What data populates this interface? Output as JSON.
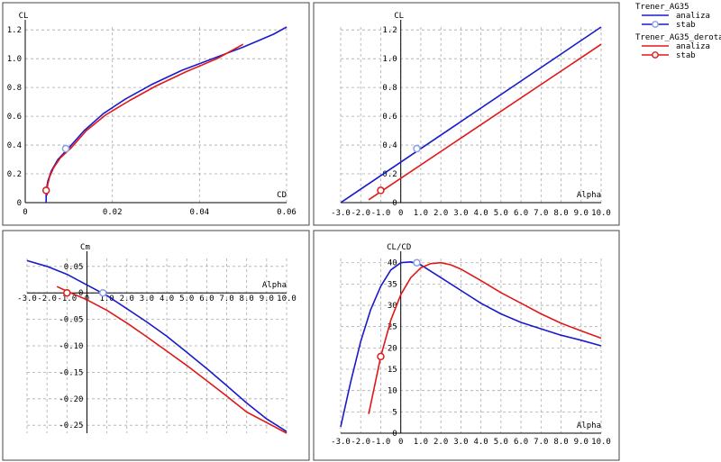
{
  "legend": {
    "groups": [
      {
        "name": "Trener_AG35",
        "color": "#1a1acc",
        "entries": [
          "analiza",
          "stab"
        ]
      },
      {
        "name": "Trener_AG35_derotate",
        "color": "#e01818",
        "entries": [
          "analiza",
          "stab"
        ]
      }
    ]
  },
  "colors": {
    "blue": "#1a1acc",
    "red": "#e01818",
    "stab_blue_marker": "#8aa0e6",
    "grid": "#aaaaaa",
    "panel_border": "#444444"
  },
  "chart_data": [
    {
      "id": "cl-cd",
      "type": "line",
      "title": "",
      "xlabel": "CD",
      "ylabel": "CL",
      "xlim": [
        0,
        0.06
      ],
      "ylim": [
        0,
        1.22
      ],
      "xticks": [
        0,
        0.02,
        0.04,
        0.06
      ],
      "xtick_labels": [
        "0",
        "0.02",
        "0.04",
        "0.06"
      ],
      "yticks": [
        0,
        0.2,
        0.4,
        0.6,
        0.8,
        1.0,
        1.2
      ],
      "ytick_labels": [
        "0",
        "0.2",
        "0.4",
        "0.6",
        "0.8",
        "1.0",
        "1.2"
      ],
      "grid": true,
      "series": [
        {
          "name": "Trener_AG35 analiza",
          "color": "#1a1acc",
          "x": [
            0.0048,
            0.0048,
            0.0049,
            0.0052,
            0.006,
            0.0075,
            0.01,
            0.0135,
            0.018,
            0.023,
            0.029,
            0.036,
            0.043,
            0.05,
            0.057,
            0.06
          ],
          "y": [
            0.0,
            0.05,
            0.1,
            0.15,
            0.22,
            0.3,
            0.38,
            0.5,
            0.62,
            0.72,
            0.82,
            0.92,
            1.0,
            1.08,
            1.17,
            1.22
          ]
        },
        {
          "name": "Trener_AG35_derotate analiza",
          "color": "#e01818",
          "x": [
            0.005,
            0.005,
            0.0052,
            0.0056,
            0.0065,
            0.008,
            0.0105,
            0.014,
            0.0185,
            0.024,
            0.03,
            0.037,
            0.044,
            0.05
          ],
          "y": [
            0.05,
            0.09,
            0.13,
            0.18,
            0.24,
            0.31,
            0.38,
            0.5,
            0.61,
            0.71,
            0.81,
            0.91,
            1.0,
            1.1
          ]
        }
      ],
      "markers": [
        {
          "series": "Trener_AG35 stab",
          "color": "#8aa0e6",
          "x": 0.0093,
          "y": 0.375
        },
        {
          "series": "Trener_AG35_derotate stab",
          "color": "#e01818",
          "x": 0.0048,
          "y": 0.085
        }
      ]
    },
    {
      "id": "cl-alpha",
      "type": "line",
      "title": "",
      "xlabel": "Alpha",
      "ylabel": "CL",
      "xlim": [
        -3.0,
        10.0
      ],
      "ylim": [
        0,
        1.22
      ],
      "xticks": [
        -3,
        -2,
        -1,
        0,
        1,
        2,
        3,
        4,
        5,
        6,
        7,
        8,
        9,
        10
      ],
      "xtick_labels": [
        "-3.0",
        "-2.0",
        "-1.0",
        "0",
        "1.0",
        "2.0",
        "3.0",
        "4.0",
        "5.0",
        "6.0",
        "7.0",
        "8.0",
        "9.0",
        "10.0"
      ],
      "yticks": [
        0,
        0.2,
        0.4,
        0.6,
        0.8,
        1.0,
        1.2
      ],
      "ytick_labels": [
        "0",
        "0.2",
        "0.4",
        "0.6",
        "0.8",
        "1.0",
        "1.2"
      ],
      "grid": true,
      "series": [
        {
          "name": "Trener_AG35 analiza",
          "color": "#1a1acc",
          "x": [
            -3.0,
            10.0
          ],
          "y": [
            0.0,
            1.22
          ]
        },
        {
          "name": "Trener_AG35_derotate analiza",
          "color": "#e01818",
          "x": [
            -1.6,
            10.0
          ],
          "y": [
            0.02,
            1.1
          ]
        }
      ],
      "markers": [
        {
          "series": "Trener_AG35 stab",
          "color": "#8aa0e6",
          "x": 0.8,
          "y": 0.375
        },
        {
          "series": "Trener_AG35_derotate stab",
          "color": "#e01818",
          "x": -1.0,
          "y": 0.085
        }
      ]
    },
    {
      "id": "cm-alpha",
      "type": "line",
      "title": "",
      "xlabel": "Alpha",
      "ylabel": "Cm",
      "xlim": [
        -3.0,
        10.0
      ],
      "ylim": [
        -0.265,
        0.065
      ],
      "xticks": [
        -3,
        -2,
        -1,
        0,
        1,
        2,
        3,
        4,
        5,
        6,
        7,
        8,
        9,
        10
      ],
      "xtick_labels": [
        "-3.0",
        "-2.0",
        "-1.0",
        "0",
        "1.0",
        "2.0",
        "3.0",
        "4.0",
        "5.0",
        "6.0",
        "7.0",
        "8.0",
        "9.0",
        "10.0"
      ],
      "yticks": [
        0.05,
        0.0,
        -0.05,
        -0.1,
        -0.15,
        -0.2,
        -0.25
      ],
      "ytick_labels": [
        "0.05",
        "0",
        "-0.05",
        "-0.10",
        "-0.15",
        "-0.20",
        "-0.25"
      ],
      "grid": true,
      "series": [
        {
          "name": "Trener_AG35 analiza",
          "color": "#1a1acc",
          "x": [
            -3.0,
            -2.0,
            -1.0,
            0.0,
            1.0,
            2.0,
            3.0,
            4.0,
            5.0,
            6.0,
            7.0,
            8.0,
            9.0,
            10.0
          ],
          "y": [
            0.061,
            0.05,
            0.035,
            0.015,
            -0.005,
            -0.03,
            -0.055,
            -0.082,
            -0.112,
            -0.143,
            -0.175,
            -0.208,
            -0.238,
            -0.262
          ]
        },
        {
          "name": "Trener_AG35_derotate analiza",
          "color": "#e01818",
          "x": [
            -1.5,
            -1.0,
            0.0,
            1.0,
            2.0,
            3.0,
            4.0,
            5.0,
            6.0,
            7.0,
            8.0,
            9.0,
            10.0
          ],
          "y": [
            0.012,
            0.003,
            -0.013,
            -0.033,
            -0.057,
            -0.083,
            -0.11,
            -0.137,
            -0.166,
            -0.195,
            -0.225,
            -0.245,
            -0.265
          ]
        }
      ],
      "markers": [
        {
          "series": "Trener_AG35 stab",
          "color": "#8aa0e6",
          "x": 0.8,
          "y": 0.0
        },
        {
          "series": "Trener_AG35_derotate stab",
          "color": "#e01818",
          "x": -1.0,
          "y": 0.0
        }
      ]
    },
    {
      "id": "clcd-alpha",
      "type": "line",
      "title": "",
      "xlabel": "Alpha",
      "ylabel": "CL/CD",
      "xlim": [
        -3.0,
        10.0
      ],
      "ylim": [
        0,
        41
      ],
      "xticks": [
        -3,
        -2,
        -1,
        0,
        1,
        2,
        3,
        4,
        5,
        6,
        7,
        8,
        9,
        10
      ],
      "xtick_labels": [
        "-3.0",
        "-2.0",
        "-1.0",
        "0",
        "1.0",
        "2.0",
        "3.0",
        "4.0",
        "5.0",
        "6.0",
        "7.0",
        "8.0",
        "9.0",
        "10.0"
      ],
      "yticks": [
        0,
        5,
        10,
        15,
        20,
        25,
        30,
        35,
        40
      ],
      "ytick_labels": [
        "0",
        "5",
        "10",
        "15",
        "20",
        "25",
        "30",
        "35",
        "40"
      ],
      "grid": true,
      "series": [
        {
          "name": "Trener_AG35 analiza",
          "color": "#1a1acc",
          "x": [
            -3.0,
            -2.5,
            -2.0,
            -1.5,
            -1.0,
            -0.5,
            0.0,
            0.5,
            1.0,
            1.5,
            2.0,
            3.0,
            4.0,
            5.0,
            6.0,
            7.0,
            8.0,
            9.0,
            10.0
          ],
          "y": [
            1.5,
            12.0,
            21.5,
            29.0,
            34.5,
            38.3,
            40.0,
            40.2,
            39.5,
            38.0,
            36.5,
            33.5,
            30.5,
            28.0,
            26.0,
            24.5,
            23.0,
            21.8,
            20.5
          ]
        },
        {
          "name": "Trener_AG35_derotate analiza",
          "color": "#e01818",
          "x": [
            -1.6,
            -1.0,
            -0.5,
            0.0,
            0.5,
            1.0,
            1.5,
            2.0,
            2.5,
            3.0,
            4.0,
            5.0,
            6.0,
            7.0,
            8.0,
            9.0,
            10.0
          ],
          "y": [
            4.5,
            18.0,
            26.5,
            32.5,
            36.5,
            38.8,
            39.8,
            40.0,
            39.5,
            38.5,
            35.8,
            33.0,
            30.5,
            28.0,
            25.8,
            24.0,
            22.3
          ]
        }
      ],
      "markers": [
        {
          "series": "Trener_AG35 stab",
          "color": "#8aa0e6",
          "x": 0.8,
          "y": 40.0
        },
        {
          "series": "Trener_AG35_derotate stab",
          "color": "#e01818",
          "x": -1.0,
          "y": 18.0
        }
      ]
    }
  ]
}
